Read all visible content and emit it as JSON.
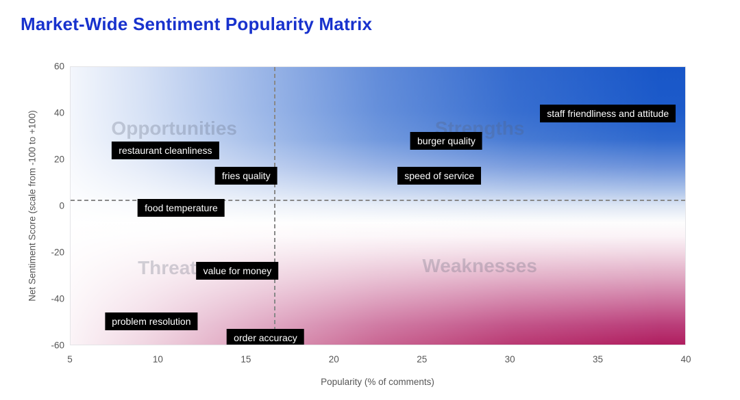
{
  "page": {
    "title": "Market-Wide Sentiment Popularity Matrix",
    "title_color": "#1832cd"
  },
  "chart_data": {
    "type": "scatter",
    "title": "Market-Wide Sentiment Popularity Matrix",
    "xlabel": "Popularity (% of comments)",
    "ylabel": "Net Sentiment Score (scale from -100 to +100)",
    "xlim": [
      5,
      40
    ],
    "ylim": [
      -60,
      60
    ],
    "x_ticks": [
      5,
      10,
      15,
      20,
      25,
      30,
      35,
      40
    ],
    "y_ticks": [
      60,
      40,
      20,
      0,
      -20,
      -40,
      -60
    ],
    "grid": false,
    "legend": "none",
    "reference_lines": {
      "vertical_x": 16.6,
      "horizontal_y": 2.6,
      "style": "dashed",
      "color": "#888888"
    },
    "quadrant_labels": [
      {
        "label": "Opportunities",
        "x": 10.9,
        "y": 33.5
      },
      {
        "label": "Strengths",
        "x": 28.3,
        "y": 33.5
      },
      {
        "label": "Threats",
        "x": 10.8,
        "y": -27
      },
      {
        "label": "Weaknesses",
        "x": 28.3,
        "y": -26
      }
    ],
    "points": [
      {
        "label": "restaurant cleanliness",
        "x": 10.4,
        "y": 24
      },
      {
        "label": "fries quality",
        "x": 15.0,
        "y": 13
      },
      {
        "label": "food temperature",
        "x": 11.3,
        "y": -1
      },
      {
        "label": "burger quality",
        "x": 26.4,
        "y": 28
      },
      {
        "label": "speed of service",
        "x": 26.0,
        "y": 13
      },
      {
        "label": "staff friendliness and attitude",
        "x": 35.6,
        "y": 40
      },
      {
        "label": "value for money",
        "x": 14.5,
        "y": -28
      },
      {
        "label": "problem resolution",
        "x": 9.6,
        "y": -50
      },
      {
        "label": "order accuracy",
        "x": 16.1,
        "y": -57
      }
    ],
    "background": {
      "top_color": "#1856c8",
      "middle_color": "#ffffff",
      "bottom_color": "#b01e5f",
      "left_wash_color": "#ffffff"
    },
    "point_label_style": {
      "background": "#000000",
      "text_color": "#ffffff"
    }
  }
}
